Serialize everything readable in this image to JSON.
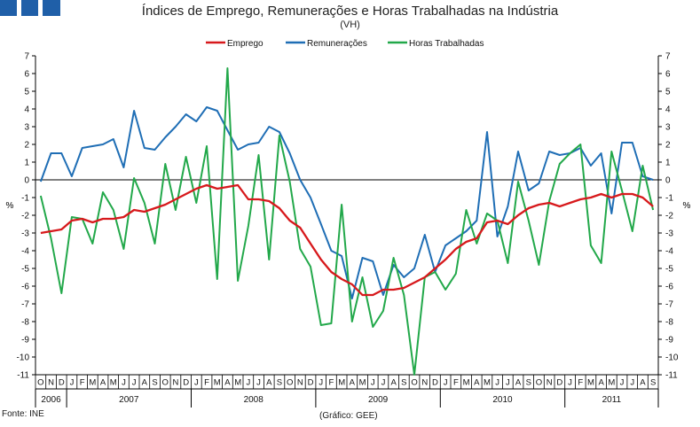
{
  "title": "Índices de Emprego, Remunerações e Horas Trabalhadas na Indústria",
  "subtitle": "(VH)",
  "source": "Fonte: INE",
  "credit": "(Gráfico: GEE)",
  "colors": {
    "emprego": "#d7191c",
    "remuneracoes": "#1f6eb5",
    "horas": "#22a84a",
    "logo": "#1f5fa8"
  },
  "chart_data": {
    "type": "line",
    "ylabel_left": "%",
    "ylabel_right": "%",
    "ylim": [
      -11,
      7
    ],
    "yticks": [
      7,
      6,
      5,
      4,
      3,
      2,
      1,
      0,
      -1,
      -2,
      -3,
      -4,
      -5,
      -6,
      -7,
      -8,
      -9,
      -10,
      -11
    ],
    "legend_position": "top",
    "grid": false,
    "months": [
      "O",
      "N",
      "D",
      "J",
      "F",
      "M",
      "A",
      "M",
      "J",
      "J",
      "A",
      "S",
      "O",
      "N",
      "D",
      "J",
      "F",
      "M",
      "A",
      "M",
      "J",
      "J",
      "A",
      "S",
      "O",
      "N",
      "D",
      "J",
      "F",
      "M",
      "A",
      "M",
      "J",
      "J",
      "A",
      "S",
      "O",
      "N",
      "D",
      "J",
      "F",
      "M",
      "A",
      "M",
      "J",
      "J",
      "A",
      "S",
      "O",
      "N",
      "D",
      "J",
      "F",
      "M",
      "A",
      "M",
      "J",
      "J",
      "A",
      "S"
    ],
    "years": [
      {
        "label": "2006",
        "start": 0,
        "count": 3
      },
      {
        "label": "2007",
        "start": 3,
        "count": 12
      },
      {
        "label": "2008",
        "start": 15,
        "count": 12
      },
      {
        "label": "2009",
        "start": 27,
        "count": 12
      },
      {
        "label": "2010",
        "start": 39,
        "count": 12
      },
      {
        "label": "2011",
        "start": 51,
        "count": 9
      }
    ],
    "series": [
      {
        "name": "Emprego",
        "values": [
          -3.0,
          -2.9,
          -2.8,
          -2.3,
          -2.2,
          -2.4,
          -2.2,
          -2.2,
          -2.1,
          -1.7,
          -1.8,
          -1.6,
          -1.4,
          -1.1,
          -0.8,
          -0.5,
          -0.3,
          -0.5,
          -0.4,
          -0.3,
          -1.1,
          -1.1,
          -1.2,
          -1.6,
          -2.3,
          -2.7,
          -3.6,
          -4.5,
          -5.2,
          -5.6,
          -5.9,
          -6.5,
          -6.5,
          -6.2,
          -6.2,
          -6.1,
          -5.8,
          -5.5,
          -5.0,
          -4.5,
          -3.9,
          -3.5,
          -3.3,
          -2.4,
          -2.3,
          -2.5,
          -2.0,
          -1.6,
          -1.4,
          -1.3,
          -1.5,
          -1.3,
          -1.1,
          -1.0,
          -0.8,
          -1.0,
          -0.8,
          -0.8,
          -1.0,
          -1.5
        ]
      },
      {
        "name": "Remunerações",
        "values": [
          -0.1,
          1.5,
          1.5,
          0.2,
          1.8,
          1.9,
          2.0,
          2.3,
          0.7,
          3.9,
          1.8,
          1.7,
          2.4,
          3.0,
          3.7,
          3.3,
          4.1,
          3.9,
          2.8,
          1.7,
          2.0,
          2.1,
          3.0,
          2.7,
          1.5,
          0.0,
          -1.0,
          -2.5,
          -4.0,
          -4.3,
          -6.7,
          -4.4,
          -4.6,
          -6.5,
          -4.8,
          -5.5,
          -5.0,
          -3.1,
          -5.2,
          -3.7,
          -3.3,
          -2.9,
          -2.3,
          2.7,
          -3.2,
          -1.5,
          1.6,
          -0.6,
          -0.2,
          1.6,
          1.4,
          1.5,
          1.8,
          0.8,
          1.5,
          -1.9,
          2.1,
          2.1,
          0.2,
          0.0
        ]
      },
      {
        "name": "Horas Trabalhadas",
        "values": [
          -0.9,
          -3.3,
          -6.4,
          -2.1,
          -2.2,
          -3.6,
          -0.7,
          -1.7,
          -3.9,
          0.1,
          -1.3,
          -3.6,
          0.9,
          -1.7,
          1.3,
          -1.3,
          1.9,
          -5.6,
          6.3,
          -5.7,
          -2.6,
          1.4,
          -4.5,
          2.5,
          -0.1,
          -3.9,
          -4.9,
          -8.2,
          -8.1,
          -1.4,
          -8.0,
          -5.5,
          -8.3,
          -7.4,
          -4.4,
          -6.5,
          -11.0,
          -5.5,
          -5.2,
          -6.2,
          -5.3,
          -1.7,
          -3.6,
          -1.9,
          -2.3,
          -4.7,
          -0.1,
          -2.3,
          -4.8,
          -1.2,
          0.9,
          1.5,
          2.0,
          -3.7,
          -4.7,
          1.6,
          -0.6,
          -2.9,
          0.8,
          -1.7
        ]
      }
    ]
  }
}
